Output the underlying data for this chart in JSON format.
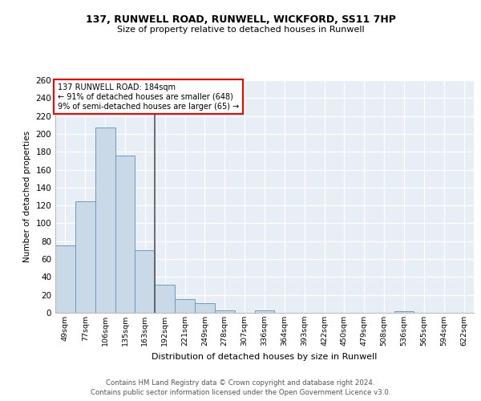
{
  "title1": "137, RUNWELL ROAD, RUNWELL, WICKFORD, SS11 7HP",
  "title2": "Size of property relative to detached houses in Runwell",
  "xlabel": "Distribution of detached houses by size in Runwell",
  "ylabel": "Number of detached properties",
  "footer1": "Contains HM Land Registry data © Crown copyright and database right 2024.",
  "footer2": "Contains public sector information licensed under the Open Government Licence v3.0.",
  "annotation_line1": "137 RUNWELL ROAD: 184sqm",
  "annotation_line2": "← 91% of detached houses are smaller (648)",
  "annotation_line3": "9% of semi-detached houses are larger (65) →",
  "bar_color": "#c9d9e8",
  "bar_edge_color": "#6a9cbf",
  "marker_line_color": "#555555",
  "background_color": "#e8eef5",
  "categories": [
    "49sqm",
    "77sqm",
    "106sqm",
    "135sqm",
    "163sqm",
    "192sqm",
    "221sqm",
    "249sqm",
    "278sqm",
    "307sqm",
    "336sqm",
    "364sqm",
    "393sqm",
    "422sqm",
    "450sqm",
    "479sqm",
    "508sqm",
    "536sqm",
    "565sqm",
    "594sqm",
    "622sqm"
  ],
  "values": [
    75,
    125,
    207,
    176,
    70,
    31,
    15,
    11,
    3,
    0,
    3,
    0,
    0,
    0,
    0,
    0,
    0,
    2,
    0,
    0,
    0
  ],
  "marker_index": 5,
  "ylim": [
    0,
    260
  ],
  "yticks": [
    0,
    20,
    40,
    60,
    80,
    100,
    120,
    140,
    160,
    180,
    200,
    220,
    240,
    260
  ],
  "figsize": [
    6.0,
    5.0
  ],
  "dpi": 100
}
